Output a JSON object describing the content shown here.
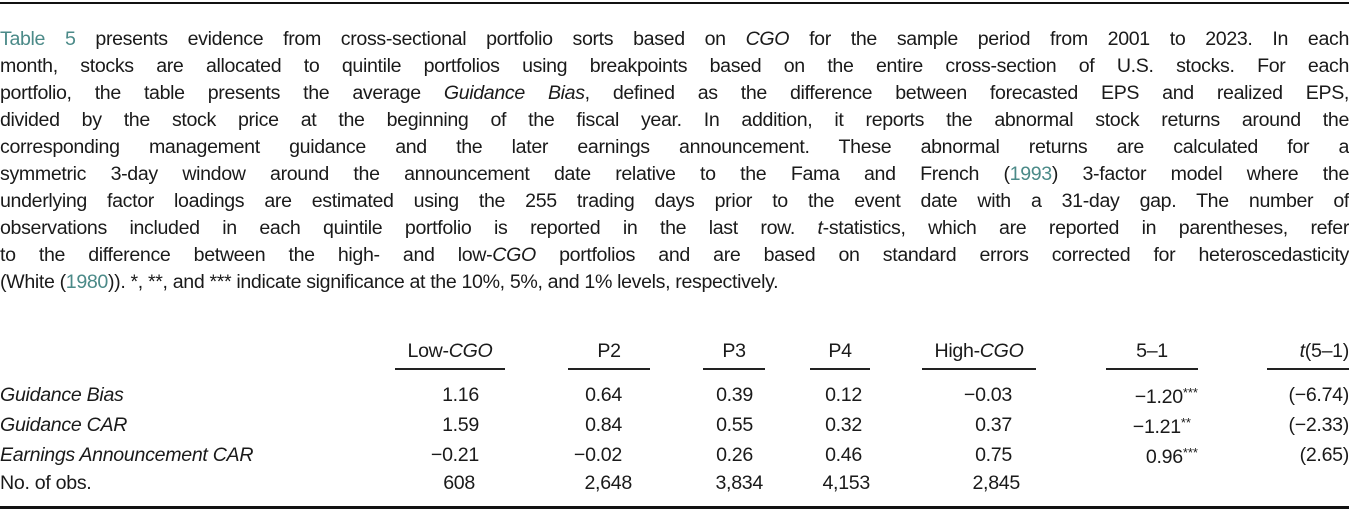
{
  "caption": {
    "lines": [
      [
        "<span class=\"link\" data-name=\"table-reference-link\" data-interactable=\"true\">Table 5</span> presents evidence from cross-sectional portfolio sorts based on <em>CGO</em> for the sample period from 2001 to 2023. In each"
      ],
      [
        "month, stocks are allocated to quintile portfolios using breakpoints based on the entire cross-section of U.S. stocks. For each"
      ],
      [
        "portfolio, the table presents the average <em>Guidance Bias</em>, defined as the difference between forecasted EPS and realized EPS,"
      ],
      [
        "divided by the stock price at the beginning of the fiscal year. In addition, it reports the abnormal stock returns around the"
      ],
      [
        "corresponding management guidance and the later earnings announcement. These abnormal returns are calculated for a"
      ],
      [
        "symmetric 3-day window around the announcement date relative to the Fama and French (<span class=\"link\" data-name=\"citation-link-1993\" data-interactable=\"true\">1993</span>) 3-factor model where the"
      ],
      [
        "underlying factor loadings are estimated using the 255 trading days prior to the event date with a 31-day gap. The number of"
      ],
      [
        "observations included in each quintile portfolio is reported in the last row. <em>t</em>-statistics, which are reported in parentheses, refer"
      ],
      [
        "to the difference between the high- and low-<em>CGO</em> portfolios and are based on standard errors corrected for heteroscedasticity"
      ],
      [
        "(White (<span class=\"link\" data-name=\"citation-link-1980\" data-interactable=\"true\">1980</span>)). *, **, and *** indicate significance at the 10%, 5%, and 1% levels, respectively."
      ]
    ],
    "links": {
      "table_ref": "Table 5",
      "cite_fama_french": "1993",
      "cite_white": "1980"
    },
    "link_color": "#4b8a88"
  },
  "table": {
    "columns": [
      {
        "label": "Low-",
        "label_italic": "CGO"
      },
      {
        "label": "P2",
        "label_italic": ""
      },
      {
        "label": "P3",
        "label_italic": ""
      },
      {
        "label": "P4",
        "label_italic": ""
      },
      {
        "label": "High-",
        "label_italic": "CGO"
      },
      {
        "label": "5–1",
        "label_italic": ""
      },
      {
        "label_italic_prefix": "t",
        "label": "(5–1)"
      }
    ],
    "rows": [
      {
        "label": "Guidance Bias",
        "italic": true,
        "low": "1.16",
        "p2": "0.64",
        "p3": "0.39",
        "p4": "0.12",
        "high": "−0.03",
        "diff": "−1.20",
        "diff_stars": "***",
        "tstat": "(−6.74)"
      },
      {
        "label": "Guidance CAR",
        "italic": true,
        "low": "1.59",
        "p2": "0.84",
        "p3": "0.55",
        "p4": "0.32",
        "high": "0.37",
        "diff": "−1.21",
        "diff_stars": "**",
        "tstat": "(−2.33)"
      },
      {
        "label": "Earnings Announcement CAR",
        "italic": true,
        "low": "−0.21",
        "p2": "−0.02",
        "p3": "0.26",
        "p4": "0.46",
        "high": "0.75",
        "diff": "0.96",
        "diff_stars": "***",
        "tstat": "(2.65)"
      },
      {
        "label": "No. of obs.",
        "italic": false,
        "low": "608",
        "p2": "2,648",
        "p3": "3,834",
        "p4": "4,153",
        "high": "2,845",
        "diff": "",
        "diff_stars": "",
        "tstat": ""
      }
    ]
  }
}
